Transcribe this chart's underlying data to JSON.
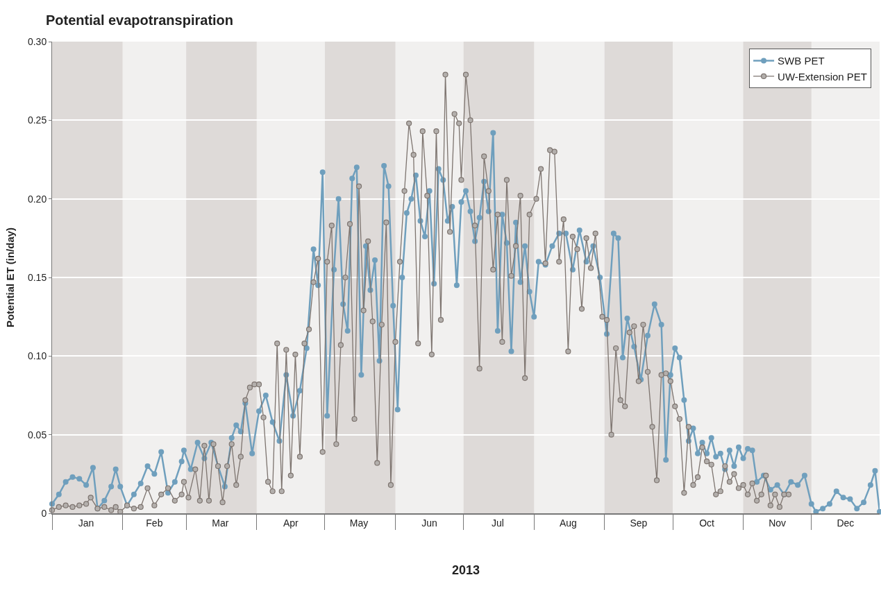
{
  "chart_data": {
    "type": "line",
    "title": "Potential evapotranspiration",
    "xlabel": "2013",
    "ylabel": "Potential ET (in/day)",
    "xlim": [
      "2013-01-01",
      "2013-12-31"
    ],
    "ylim": [
      0,
      0.3
    ],
    "yticks": [
      {
        "value": 0,
        "label": "0"
      },
      0.05,
      {
        "value": 0.1,
        "label": "0.10"
      },
      0.15,
      {
        "value": 0.2,
        "label": "0.20"
      },
      0.25,
      {
        "value": 0.3,
        "label": "0.30"
      }
    ],
    "xticks": [
      {
        "value": "2013-01-16",
        "label": "Jan"
      },
      {
        "value": "2013-02-15",
        "label": "Feb"
      },
      {
        "value": "2013-03-16",
        "label": "Mar"
      },
      {
        "value": "2013-04-16",
        "label": "Apr"
      },
      {
        "value": "2013-05-16",
        "label": "May"
      },
      {
        "value": "2013-06-16",
        "label": "Jun"
      },
      {
        "value": "2013-07-16",
        "label": "Jul"
      },
      {
        "value": "2013-08-16",
        "label": "Aug"
      },
      {
        "value": "2013-09-16",
        "label": "Sep"
      },
      {
        "value": "2013-10-16",
        "label": "Oct"
      },
      {
        "value": "2013-11-16",
        "label": "Nov"
      },
      {
        "value": "2013-12-16",
        "label": "Dec"
      }
    ],
    "grid": "y",
    "legend": "top right",
    "marker": "circle",
    "line_style": "solid",
    "bands": [
      {
        "axis": "x",
        "from": "2013-01-01",
        "to": "2013-02-01",
        "color": "#dedad8"
      },
      {
        "axis": "x",
        "from": "2013-03-01",
        "to": "2013-04-01",
        "color": "#dedad8"
      },
      {
        "axis": "x",
        "from": "2013-05-01",
        "to": "2013-06-01",
        "color": "#dedad8"
      },
      {
        "axis": "x",
        "from": "2013-07-01",
        "to": "2013-08-01",
        "color": "#dedad8"
      },
      {
        "axis": "x",
        "from": "2013-09-01",
        "to": "2013-10-01",
        "color": "#dedad8"
      },
      {
        "axis": "x",
        "from": "2013-11-01",
        "to": "2013-12-01",
        "color": "#dedad8"
      }
    ],
    "series": [
      {
        "name": "SWB PET",
        "color": "#6f9fbd",
        "x": [
          "2013-01-01",
          "2013-01-04",
          "2013-01-07",
          "2013-01-10",
          "2013-01-13",
          "2013-01-16",
          "2013-01-19",
          "2013-01-21",
          "2013-01-24",
          "2013-01-27",
          "2013-01-29",
          "2013-01-31",
          "2013-02-03",
          "2013-02-06",
          "2013-02-09",
          "2013-02-12",
          "2013-02-15",
          "2013-02-18",
          "2013-02-21",
          "2013-02-24",
          "2013-02-27",
          "2013-02-28",
          "2013-03-03",
          "2013-03-06",
          "2013-03-09",
          "2013-03-12",
          "2013-03-15",
          "2013-03-18",
          "2013-03-21",
          "2013-03-23",
          "2013-03-25",
          "2013-03-27",
          "2013-03-30",
          "2013-04-02",
          "2013-04-05",
          "2013-04-08",
          "2013-04-11",
          "2013-04-14",
          "2013-04-17",
          "2013-04-20",
          "2013-04-23",
          "2013-04-26",
          "2013-04-28",
          "2013-04-30",
          "2013-05-02",
          "2013-05-05",
          "2013-05-07",
          "2013-05-09",
          "2013-05-11",
          "2013-05-13",
          "2013-05-15",
          "2013-05-17",
          "2013-05-19",
          "2013-05-21",
          "2013-05-23",
          "2013-05-25",
          "2013-05-27",
          "2013-05-29",
          "2013-05-31",
          "2013-06-02",
          "2013-06-04",
          "2013-06-06",
          "2013-06-08",
          "2013-06-10",
          "2013-06-12",
          "2013-06-14",
          "2013-06-16",
          "2013-06-18",
          "2013-06-20",
          "2013-06-22",
          "2013-06-24",
          "2013-06-26",
          "2013-06-28",
          "2013-06-30",
          "2013-07-02",
          "2013-07-04",
          "2013-07-06",
          "2013-07-08",
          "2013-07-10",
          "2013-07-12",
          "2013-07-14",
          "2013-07-16",
          "2013-07-18",
          "2013-07-20",
          "2013-07-22",
          "2013-07-24",
          "2013-07-26",
          "2013-07-28",
          "2013-07-30",
          "2013-08-01",
          "2013-08-03",
          "2013-08-06",
          "2013-08-09",
          "2013-08-12",
          "2013-08-15",
          "2013-08-18",
          "2013-08-21",
          "2013-08-24",
          "2013-08-27",
          "2013-08-30",
          "2013-09-02",
          "2013-09-05",
          "2013-09-07",
          "2013-09-09",
          "2013-09-11",
          "2013-09-14",
          "2013-09-17",
          "2013-09-20",
          "2013-09-23",
          "2013-09-26",
          "2013-09-28",
          "2013-09-30",
          "2013-10-02",
          "2013-10-04",
          "2013-10-06",
          "2013-10-08",
          "2013-10-10",
          "2013-10-12",
          "2013-10-14",
          "2013-10-16",
          "2013-10-18",
          "2013-10-20",
          "2013-10-22",
          "2013-10-24",
          "2013-10-26",
          "2013-10-28",
          "2013-10-30",
          "2013-11-01",
          "2013-11-03",
          "2013-11-05",
          "2013-11-07",
          "2013-11-10",
          "2013-11-13",
          "2013-11-16",
          "2013-11-19",
          "2013-11-22",
          "2013-11-25",
          "2013-11-28",
          "2013-12-01",
          "2013-12-03",
          "2013-12-06",
          "2013-12-09",
          "2013-12-12",
          "2013-12-15",
          "2013-12-18",
          "2013-12-21",
          "2013-12-24",
          "2013-12-27",
          "2013-12-29",
          "2013-12-31"
        ],
        "values": [
          0.006,
          0.012,
          0.02,
          0.023,
          0.022,
          0.018,
          0.029,
          0.003,
          0.008,
          0.017,
          0.028,
          0.017,
          0.005,
          0.012,
          0.019,
          0.03,
          0.025,
          0.039,
          0.013,
          0.02,
          0.033,
          0.04,
          0.028,
          0.045,
          0.035,
          0.045,
          0.03,
          0.017,
          0.048,
          0.056,
          0.052,
          0.07,
          0.038,
          0.065,
          0.075,
          0.058,
          0.046,
          0.088,
          0.062,
          0.078,
          0.105,
          0.168,
          0.145,
          0.217,
          0.062,
          0.155,
          0.2,
          0.133,
          0.116,
          0.213,
          0.22,
          0.088,
          0.17,
          0.142,
          0.161,
          0.097,
          0.221,
          0.208,
          0.132,
          0.066,
          0.15,
          0.191,
          0.2,
          0.215,
          0.186,
          0.176,
          0.205,
          0.146,
          0.219,
          0.212,
          0.186,
          0.195,
          0.145,
          0.198,
          0.205,
          0.192,
          0.173,
          0.188,
          0.211,
          0.192,
          0.242,
          0.116,
          0.19,
          0.172,
          0.103,
          0.185,
          0.147,
          0.17,
          0.141,
          0.125,
          0.16,
          0.158,
          0.17,
          0.178,
          0.178,
          0.155,
          0.18,
          0.16,
          0.17,
          0.15,
          0.114,
          0.178,
          0.175,
          0.099,
          0.124,
          0.106,
          0.085,
          0.113,
          0.133,
          0.12,
          0.034,
          0.088,
          0.105,
          0.099,
          0.072,
          0.046,
          0.054,
          0.038,
          0.045,
          0.038,
          0.048,
          0.036,
          0.038,
          0.028,
          0.04,
          0.03,
          0.042,
          0.035,
          0.041,
          0.04,
          0.02,
          0.024,
          0.015,
          0.018,
          0.012,
          0.02,
          0.018,
          0.024,
          0.006,
          0.001,
          0.003,
          0.006,
          0.014,
          0.01,
          0.009,
          0.003,
          0.007,
          0.018,
          0.027,
          0.001
        ]
      },
      {
        "name": "UW-Extension PET",
        "color": "#7d746f",
        "x": [
          "2013-01-01",
          "2013-01-04",
          "2013-01-07",
          "2013-01-10",
          "2013-01-13",
          "2013-01-16",
          "2013-01-18",
          "2013-01-21",
          "2013-01-24",
          "2013-01-27",
          "2013-01-29",
          "2013-01-31",
          "2013-02-03",
          "2013-02-06",
          "2013-02-09",
          "2013-02-12",
          "2013-02-15",
          "2013-02-18",
          "2013-02-21",
          "2013-02-24",
          "2013-02-27",
          "2013-02-28",
          "2013-03-02",
          "2013-03-05",
          "2013-03-07",
          "2013-03-09",
          "2013-03-11",
          "2013-03-13",
          "2013-03-15",
          "2013-03-17",
          "2013-03-19",
          "2013-03-21",
          "2013-03-23",
          "2013-03-25",
          "2013-03-27",
          "2013-03-29",
          "2013-03-31",
          "2013-04-02",
          "2013-04-04",
          "2013-04-06",
          "2013-04-08",
          "2013-04-10",
          "2013-04-12",
          "2013-04-14",
          "2013-04-16",
          "2013-04-18",
          "2013-04-20",
          "2013-04-22",
          "2013-04-24",
          "2013-04-26",
          "2013-04-28",
          "2013-04-30",
          "2013-05-02",
          "2013-05-04",
          "2013-05-06",
          "2013-05-08",
          "2013-05-10",
          "2013-05-12",
          "2013-05-14",
          "2013-05-16",
          "2013-05-18",
          "2013-05-20",
          "2013-05-22",
          "2013-05-24",
          "2013-05-26",
          "2013-05-28",
          "2013-05-30",
          "2013-06-01",
          "2013-06-03",
          "2013-06-05",
          "2013-06-07",
          "2013-06-09",
          "2013-06-11",
          "2013-06-13",
          "2013-06-15",
          "2013-06-17",
          "2013-06-19",
          "2013-06-21",
          "2013-06-23",
          "2013-06-25",
          "2013-06-27",
          "2013-06-29",
          "2013-06-30",
          "2013-07-02",
          "2013-07-04",
          "2013-07-06",
          "2013-07-08",
          "2013-07-10",
          "2013-07-12",
          "2013-07-14",
          "2013-07-16",
          "2013-07-18",
          "2013-07-20",
          "2013-07-22",
          "2013-07-24",
          "2013-07-26",
          "2013-07-28",
          "2013-07-30",
          "2013-08-02",
          "2013-08-04",
          "2013-08-06",
          "2013-08-08",
          "2013-08-10",
          "2013-08-12",
          "2013-08-14",
          "2013-08-16",
          "2013-08-18",
          "2013-08-20",
          "2013-08-22",
          "2013-08-24",
          "2013-08-26",
          "2013-08-28",
          "2013-08-31",
          "2013-09-02",
          "2013-09-04",
          "2013-09-06",
          "2013-09-08",
          "2013-09-10",
          "2013-09-12",
          "2013-09-14",
          "2013-09-16",
          "2013-09-18",
          "2013-09-20",
          "2013-09-22",
          "2013-09-24",
          "2013-09-26",
          "2013-09-28",
          "2013-09-30",
          "2013-10-02",
          "2013-10-04",
          "2013-10-06",
          "2013-10-08",
          "2013-10-10",
          "2013-10-12",
          "2013-10-14",
          "2013-10-16",
          "2013-10-18",
          "2013-10-20",
          "2013-10-22",
          "2013-10-24",
          "2013-10-26",
          "2013-10-28",
          "2013-10-30",
          "2013-11-01",
          "2013-11-03",
          "2013-11-05",
          "2013-11-07",
          "2013-11-09",
          "2013-11-11",
          "2013-11-13",
          "2013-11-15",
          "2013-11-17",
          "2013-11-19",
          "2013-11-21"
        ],
        "values": [
          0.002,
          0.004,
          0.005,
          0.004,
          0.005,
          0.006,
          0.01,
          0.003,
          0.004,
          0.002,
          0.004,
          0.001,
          0.005,
          0.003,
          0.004,
          0.016,
          0.005,
          0.012,
          0.016,
          0.008,
          0.012,
          0.02,
          0.01,
          0.028,
          0.008,
          0.043,
          0.008,
          0.044,
          0.03,
          0.007,
          0.03,
          0.044,
          0.018,
          0.036,
          0.072,
          0.08,
          0.082,
          0.082,
          0.061,
          0.02,
          0.014,
          0.108,
          0.014,
          0.104,
          0.024,
          0.101,
          0.036,
          0.108,
          0.117,
          0.147,
          0.162,
          0.039,
          0.16,
          0.183,
          0.044,
          0.107,
          0.15,
          0.184,
          0.06,
          0.208,
          0.129,
          0.173,
          0.122,
          0.032,
          0.12,
          0.185,
          0.018,
          0.109,
          0.16,
          0.205,
          0.248,
          0.228,
          0.108,
          0.243,
          0.202,
          0.101,
          0.243,
          0.123,
          0.279,
          0.179,
          0.254,
          0.248,
          0.212,
          0.279,
          0.25,
          0.183,
          0.092,
          0.227,
          0.205,
          0.155,
          0.19,
          0.109,
          0.212,
          0.151,
          0.17,
          0.202,
          0.086,
          0.19,
          0.2,
          0.219,
          0.159,
          0.231,
          0.23,
          0.16,
          0.187,
          0.103,
          0.176,
          0.168,
          0.13,
          0.175,
          0.156,
          0.178,
          0.125,
          0.123,
          0.05,
          0.105,
          0.072,
          0.068,
          0.115,
          0.119,
          0.084,
          0.12,
          0.09,
          0.055,
          0.021,
          0.088,
          0.089,
          0.084,
          0.068,
          0.06,
          0.013,
          0.055,
          0.018,
          0.023,
          0.042,
          0.033,
          0.031,
          0.012,
          0.014,
          0.03,
          0.02,
          0.025,
          0.016,
          0.018,
          0.012,
          0.019,
          0.008,
          0.012,
          0.024,
          0.005,
          0.012,
          0.004,
          0.012,
          0.012
        ]
      }
    ]
  }
}
